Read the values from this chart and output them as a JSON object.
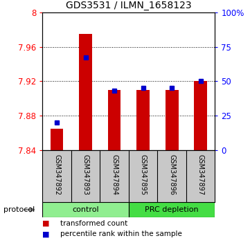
{
  "title": "GDS3531 / ILMN_1658123",
  "samples": [
    "GSM347892",
    "GSM347893",
    "GSM347894",
    "GSM347895",
    "GSM347896",
    "GSM347897"
  ],
  "red_values": [
    7.865,
    7.975,
    7.91,
    7.91,
    7.91,
    7.92
  ],
  "blue_values_pct": [
    20,
    67,
    43,
    45,
    45,
    50
  ],
  "y_min": 7.84,
  "y_max": 8.0,
  "y_ticks": [
    7.84,
    7.88,
    7.92,
    7.96,
    8.0
  ],
  "y_tick_labels": [
    "7.84",
    "7.88",
    "7.92",
    "7.96",
    "8"
  ],
  "y2_ticks": [
    0,
    25,
    50,
    75,
    100
  ],
  "y2_tick_labels": [
    "0",
    "25",
    "50",
    "75",
    "100%"
  ],
  "bar_color": "#CC0000",
  "dot_color": "#0000CC",
  "label_area_color": "#C8C8C8",
  "group_color_control": "#90EE90",
  "group_color_prc": "#44DD44",
  "legend_items": [
    {
      "label": "transformed count",
      "color": "#CC0000"
    },
    {
      "label": "percentile rank within the sample",
      "color": "#0000CC"
    }
  ]
}
